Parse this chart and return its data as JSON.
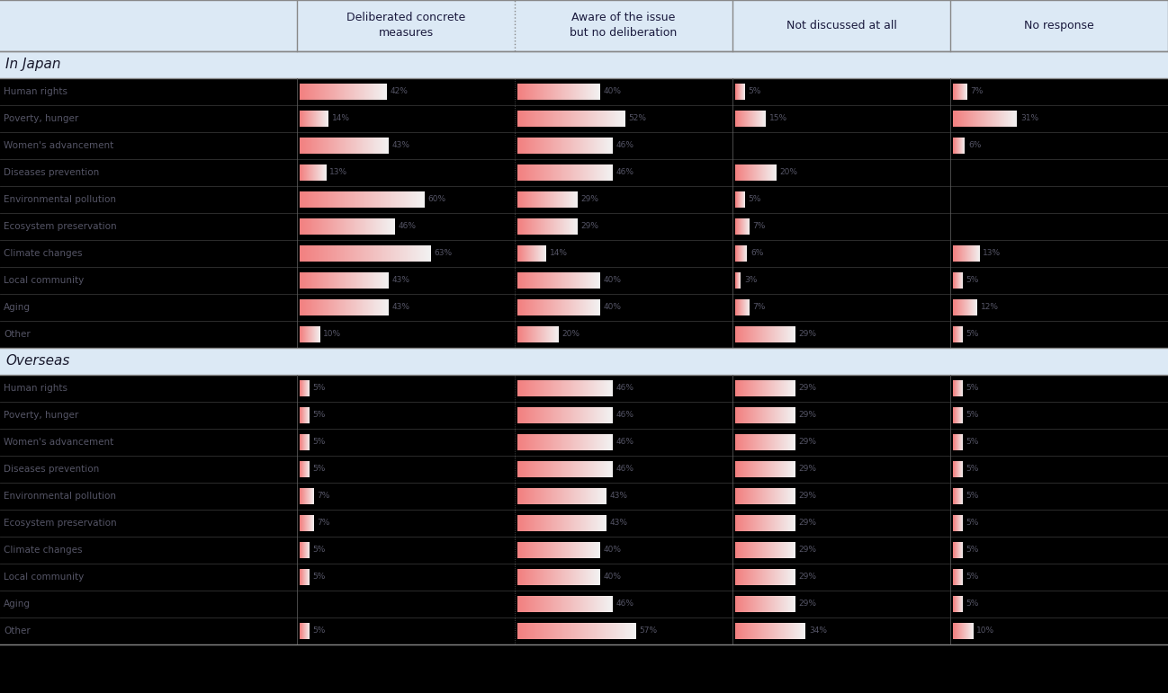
{
  "header_bg": "#dce9f5",
  "section_bg": "#dce9f5",
  "bar_color": "#f08080",
  "text_color_header": "#1a1a3e",
  "text_color_row_label": "#555566",
  "text_color_pct": "#555566",
  "col_headers": [
    "Deliberated concrete\nmeasures",
    "Aware of the issue\nbut no deliberation",
    "Not discussed at all",
    "No response"
  ],
  "japan_rows": [
    {
      "label": "Human rights",
      "v1": 42,
      "v2": 40,
      "v3": 5,
      "v4": 7
    },
    {
      "label": "Poverty, hunger",
      "v1": 14,
      "v2": 52,
      "v3": 15,
      "v4": 31
    },
    {
      "label": "Women's advancement",
      "v1": 43,
      "v2": 46,
      "v3": 0,
      "v4": 6
    },
    {
      "label": "Diseases prevention",
      "v1": 13,
      "v2": 46,
      "v3": 20,
      "v4": 0
    },
    {
      "label": "Environmental pollution",
      "v1": 60,
      "v2": 29,
      "v3": 5,
      "v4": 0
    },
    {
      "label": "Ecosystem preservation",
      "v1": 46,
      "v2": 29,
      "v3": 7,
      "v4": 0
    },
    {
      "label": "Climate changes",
      "v1": 63,
      "v2": 14,
      "v3": 6,
      "v4": 13
    },
    {
      "label": "Local community",
      "v1": 43,
      "v2": 40,
      "v3": 3,
      "v4": 5
    },
    {
      "label": "Aging",
      "v1": 43,
      "v2": 40,
      "v3": 7,
      "v4": 12
    },
    {
      "label": "Other",
      "v1": 10,
      "v2": 20,
      "v3": 29,
      "v4": 5
    }
  ],
  "overseas_rows": [
    {
      "label": "Human rights",
      "v1": 5,
      "v2": 46,
      "v3": 29,
      "v4": 5
    },
    {
      "label": "Poverty, hunger",
      "v1": 5,
      "v2": 46,
      "v3": 29,
      "v4": 5
    },
    {
      "label": "Women's advancement",
      "v1": 5,
      "v2": 46,
      "v3": 29,
      "v4": 5
    },
    {
      "label": "Diseases prevention",
      "v1": 5,
      "v2": 46,
      "v3": 29,
      "v4": 5
    },
    {
      "label": "Environmental pollution",
      "v1": 7,
      "v2": 43,
      "v3": 29,
      "v4": 5
    },
    {
      "label": "Ecosystem preservation",
      "v1": 7,
      "v2": 43,
      "v3": 29,
      "v4": 5
    },
    {
      "label": "Climate changes",
      "v1": 5,
      "v2": 40,
      "v3": 29,
      "v4": 5
    },
    {
      "label": "Local community",
      "v1": 5,
      "v2": 40,
      "v3": 29,
      "v4": 5
    },
    {
      "label": "Aging",
      "v1": 0,
      "v2": 46,
      "v3": 29,
      "v4": 5
    },
    {
      "label": "Other",
      "v1": 5,
      "v2": 57,
      "v3": 34,
      "v4": 10
    }
  ],
  "figsize": [
    12.98,
    7.71
  ]
}
